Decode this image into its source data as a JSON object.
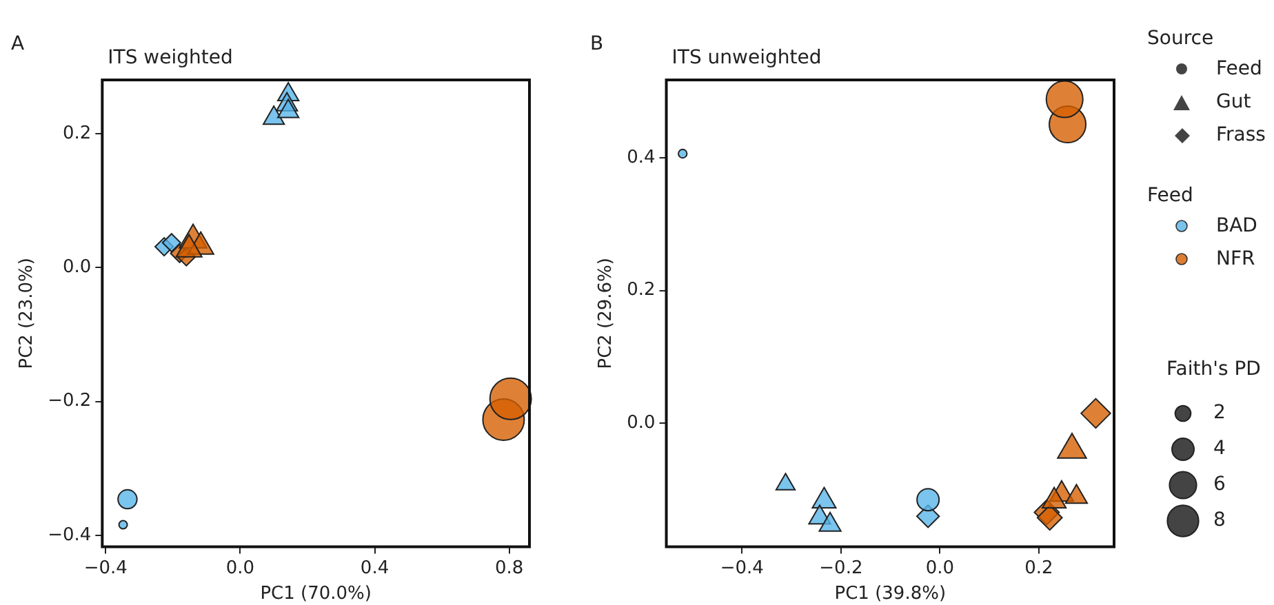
{
  "chart_data": [
    {
      "type": "bubble",
      "title": "ITS weighted",
      "xlabel": "PC1 (70.0%)",
      "ylabel": "PC2 (23.0%)",
      "annotations": [
        "A"
      ],
      "xlim": [
        -0.41,
        0.86
      ],
      "ylim": [
        -0.417,
        0.28
      ],
      "xticks": [
        -0.4,
        {
          "value": 0,
          "label": "0.0"
        },
        0.4,
        0.8
      ],
      "yticks": [
        -0.4,
        -0.2,
        {
          "value": 0,
          "label": "0.0"
        },
        0.2
      ],
      "grid": false,
      "series": [
        {
          "marker": "circle",
          "color": "#56b4e9",
          "x": [
            -0.335,
            -0.348
          ],
          "values": [
            -0.346,
            -0.384
          ],
          "sizes": [
            0.21,
            0.04
          ]
        },
        {
          "marker": "triangle",
          "color": "#56b4e9",
          "x": [
            0.143,
            0.139,
            0.1,
            0.143
          ],
          "values": [
            0.258,
            0.243,
            0.223,
            0.233
          ],
          "sizes": [
            0.14,
            0.14,
            0.14,
            0.14
          ]
        },
        {
          "marker": "diamond",
          "color": "#56b4e9",
          "x": [
            -0.226,
            -0.204
          ],
          "values": [
            0.031,
            0.037
          ],
          "sizes": [
            0.12,
            0.12
          ]
        },
        {
          "marker": "circle",
          "color": "#d55e00",
          "x": [
            0.783,
            0.804
          ],
          "values": [
            -0.227,
            -0.196
          ],
          "sizes": [
            1,
            1
          ]
        },
        {
          "marker": "triangle",
          "color": "#d55e00",
          "x": [
            -0.14,
            -0.117,
            -0.152
          ],
          "values": [
            0.041,
            0.031,
            0.027
          ],
          "sizes": [
            0.24,
            0.21,
            0.21
          ]
        },
        {
          "marker": "diamond",
          "color": "#d55e00",
          "x": [
            -0.18,
            -0.16
          ],
          "values": [
            0.021,
            0.016
          ],
          "sizes": [
            0.12,
            0.12
          ]
        }
      ]
    },
    {
      "type": "bubble",
      "title": "ITS unweighted",
      "xlabel": "PC1 (39.8%)",
      "ylabel": "PC2 (29.6%)",
      "annotations": [
        "B"
      ],
      "xlim": [
        -0.553,
        0.352
      ],
      "ylim": [
        -0.186,
        0.517
      ],
      "xticks": [
        -0.4,
        -0.2,
        {
          "value": 0,
          "label": "0.0"
        },
        0.2
      ],
      "yticks": [
        {
          "value": 0,
          "label": "0.0"
        },
        0.2,
        0.4
      ],
      "grid": false,
      "legend_title": "Faith's PD",
      "size_legend": [
        2,
        4,
        6,
        8
      ],
      "series": [
        {
          "marker": "circle",
          "color": "#56b4e9",
          "x": [
            -0.52,
            -0.024
          ],
          "values": [
            0.406,
            -0.115
          ],
          "sizes": [
            0.6,
            4
          ]
        },
        {
          "marker": "triangle",
          "color": "#56b4e9",
          "x": [
            -0.312,
            -0.234,
            -0.243,
            -0.222
          ],
          "values": [
            -0.092,
            -0.117,
            -0.142,
            -0.153
          ],
          "sizes": [
            1.6,
            2.5,
            2.1,
            2.1
          ]
        },
        {
          "marker": "diamond",
          "color": "#56b4e9",
          "x": [
            -0.024
          ],
          "values": [
            -0.14
          ],
          "sizes": [
            2.6
          ]
        },
        {
          "marker": "circle",
          "color": "#d55e00",
          "x": [
            0.258,
            0.252
          ],
          "values": [
            0.45,
            0.488
          ],
          "sizes": [
            11,
            11
          ]
        },
        {
          "marker": "triangle",
          "color": "#d55e00",
          "x": [
            0.267,
            0.246,
            0.276,
            0.231
          ],
          "values": [
            -0.04,
            -0.107,
            -0.111,
            -0.117
          ],
          "sizes": [
            3.7,
            2.5,
            2.1,
            2.5
          ]
        },
        {
          "marker": "diamond",
          "color": "#d55e00",
          "x": [
            0.315,
            0.216,
            0.222
          ],
          "values": [
            0.015,
            -0.134,
            -0.142
          ],
          "sizes": [
            4.5,
            3.2,
            3.2
          ]
        }
      ]
    },
    {
      "type": "other",
      "annotations": [
        "Source",
        "Feed",
        "Gut",
        "Frass",
        "Feed",
        "BAD",
        "NFR"
      ]
    }
  ]
}
